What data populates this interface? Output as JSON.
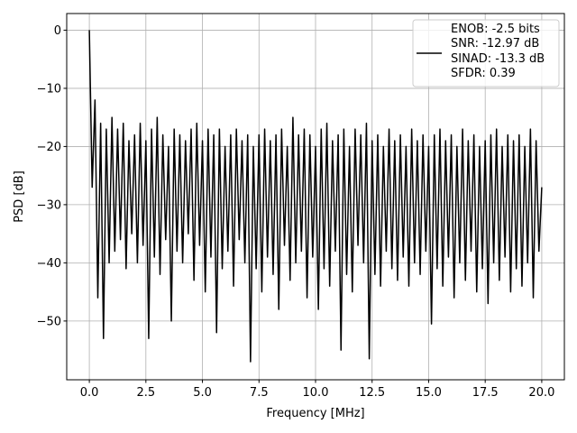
{
  "chart_data": {
    "type": "line",
    "xlabel": "Frequency [MHz]",
    "ylabel": "PSD [dB]",
    "x": [
      0,
      0.125,
      0.25,
      0.375,
      0.5,
      0.625,
      0.75,
      0.875,
      1,
      1.125,
      1.25,
      1.375,
      1.5,
      1.625,
      1.75,
      1.875,
      2,
      2.125,
      2.25,
      2.375,
      2.5,
      2.625,
      2.75,
      2.875,
      3,
      3.125,
      3.25,
      3.375,
      3.5,
      3.625,
      3.75,
      3.875,
      4,
      4.125,
      4.25,
      4.375,
      4.5,
      4.625,
      4.75,
      4.875,
      5,
      5.125,
      5.25,
      5.375,
      5.5,
      5.625,
      5.75,
      5.875,
      6,
      6.125,
      6.25,
      6.375,
      6.5,
      6.625,
      6.75,
      6.875,
      7,
      7.125,
      7.25,
      7.375,
      7.5,
      7.625,
      7.75,
      7.875,
      8,
      8.125,
      8.25,
      8.375,
      8.5,
      8.625,
      8.75,
      8.875,
      9,
      9.125,
      9.25,
      9.375,
      9.5,
      9.625,
      9.75,
      9.875,
      10,
      10.125,
      10.25,
      10.375,
      10.5,
      10.625,
      10.75,
      10.875,
      11,
      11.125,
      11.25,
      11.375,
      11.5,
      11.625,
      11.75,
      11.875,
      12,
      12.125,
      12.25,
      12.375,
      12.5,
      12.625,
      12.75,
      12.875,
      13,
      13.125,
      13.25,
      13.375,
      13.5,
      13.625,
      13.75,
      13.875,
      14,
      14.125,
      14.25,
      14.375,
      14.5,
      14.625,
      14.75,
      14.875,
      15,
      15.125,
      15.25,
      15.375,
      15.5,
      15.625,
      15.75,
      15.875,
      16,
      16.125,
      16.25,
      16.375,
      16.5,
      16.625,
      16.75,
      16.875,
      17,
      17.125,
      17.25,
      17.375,
      17.5,
      17.625,
      17.75,
      17.875,
      18,
      18.125,
      18.25,
      18.375,
      18.5,
      18.625,
      18.75,
      18.875,
      19,
      19.125,
      19.25,
      19.375,
      19.5,
      19.625,
      19.75,
      19.875,
      20
    ],
    "series": [
      {
        "name": "ENOB: -2.5 bits\nSNR: -12.97 dB\nSINAD: -13.3 dB\nSFDR: 0.39",
        "color": "#000000",
        "values": [
          0,
          -27,
          -12,
          -46,
          -16,
          -53,
          -17,
          -40,
          -15,
          -38,
          -17,
          -36,
          -16,
          -41,
          -19,
          -35,
          -18,
          -40,
          -16,
          -37,
          -19,
          -53,
          -17,
          -39,
          -15,
          -42,
          -18,
          -36,
          -20,
          -50,
          -17,
          -38,
          -18,
          -40,
          -19,
          -35,
          -17,
          -43,
          -16,
          -37,
          -19,
          -45,
          -17,
          -39,
          -18,
          -52,
          -17,
          -41,
          -20,
          -38,
          -18,
          -44,
          -17,
          -36,
          -19,
          -40,
          -18,
          -57,
          -20,
          -41,
          -18,
          -45,
          -17,
          -39,
          -19,
          -42,
          -18,
          -48,
          -17,
          -37,
          -20,
          -43,
          -15,
          -40,
          -18,
          -38,
          -17,
          -46,
          -18,
          -39,
          -20,
          -48,
          -17,
          -41,
          -16,
          -44,
          -19,
          -38,
          -18,
          -55,
          -17,
          -42,
          -20,
          -45,
          -17,
          -37,
          -18,
          -40,
          -16,
          -56.5,
          -19,
          -42,
          -18,
          -44,
          -20,
          -38,
          -17,
          -41,
          -19,
          -43,
          -18,
          -39,
          -20,
          -44,
          -17,
          -40,
          -19,
          -42,
          -18,
          -38,
          -20,
          -50.5,
          -18,
          -41,
          -17,
          -44,
          -19,
          -39,
          -18,
          -46,
          -20,
          -40,
          -17,
          -43,
          -19,
          -38,
          -18,
          -45,
          -20,
          -41,
          -19,
          -47,
          -18,
          -40,
          -17,
          -43,
          -20,
          -39,
          -18,
          -45,
          -19,
          -41,
          -18,
          -44,
          -20,
          -40,
          -17,
          -46,
          -19,
          -38,
          -27
        ]
      }
    ],
    "xlim": [
      -1,
      21
    ],
    "xticks": [
      {
        "value": 0,
        "label": "0.0"
      },
      2.5,
      {
        "value": 5,
        "label": "5.0"
      },
      7.5,
      {
        "value": 10,
        "label": "10.0"
      },
      12.5,
      {
        "value": 15,
        "label": "15.0"
      },
      17.5,
      {
        "value": 20,
        "label": "20.0"
      }
    ],
    "ylim": [
      -60.1,
      2.86
    ],
    "yticks": [
      {
        "value": -50,
        "label": "−50"
      },
      {
        "value": -40,
        "label": "−40"
      },
      {
        "value": -30,
        "label": "−30"
      },
      {
        "value": -20,
        "label": "−20"
      },
      {
        "value": -10,
        "label": "−10"
      },
      0
    ],
    "grid": true,
    "legend": "upper right"
  }
}
